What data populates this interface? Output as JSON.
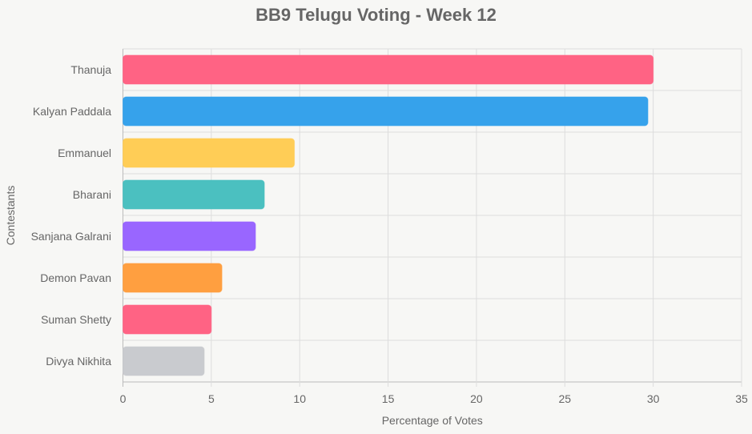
{
  "chart_data": {
    "type": "bar",
    "orientation": "horizontal",
    "title": "BB9 Telugu Voting - Week 12",
    "xlabel": "Percentage of Votes",
    "ylabel": "Contestants",
    "xlim": [
      0,
      35
    ],
    "xticks": [
      0,
      5,
      10,
      15,
      20,
      25,
      30,
      35
    ],
    "grid": true,
    "categories": [
      "Thanuja",
      "Kalyan Paddala",
      "Emmanuel",
      "Bharani",
      "Sanjana Galrani",
      "Demon Pavan",
      "Suman Shetty",
      "Divya Nikhita"
    ],
    "values": [
      30.0,
      29.7,
      9.7,
      8.0,
      7.5,
      5.6,
      5.0,
      4.6
    ],
    "colors": [
      "#ff6384",
      "#36a2eb",
      "#ffcd56",
      "#4bc0c0",
      "#9966ff",
      "#ff9f40",
      "#ff6384",
      "#c9cbcf"
    ]
  }
}
